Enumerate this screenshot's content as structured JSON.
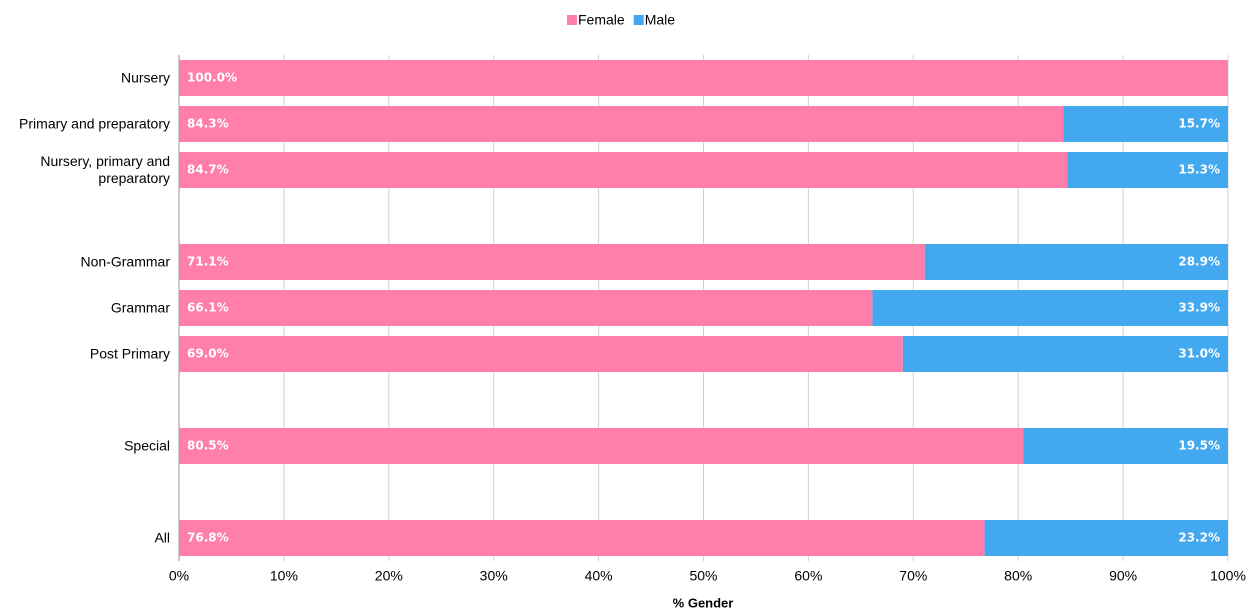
{
  "chart_data": {
    "type": "stacked-barh",
    "xlabel": "% Gender",
    "categories": [
      "Nursery",
      "Primary and preparatory",
      "Nursery, primary and preparatory",
      null,
      "Non-Grammar",
      "Grammar",
      "Post Primary",
      null,
      "Special",
      null,
      "All"
    ],
    "series": [
      {
        "name": "Female",
        "color": "#ff7faa",
        "values": [
          100.0,
          84.3,
          84.7,
          null,
          71.1,
          66.1,
          69.0,
          null,
          80.5,
          null,
          76.8
        ],
        "value_labels": [
          "100.0%",
          "84.3%",
          "84.7%",
          null,
          "71.1%",
          "66.1%",
          "69.0%",
          null,
          "80.5%",
          null,
          "76.8%"
        ]
      },
      {
        "name": "Male",
        "color": "#42a8f0",
        "values": [
          0,
          15.7,
          15.3,
          null,
          28.9,
          33.9,
          31.0,
          null,
          19.5,
          null,
          23.2
        ],
        "value_labels": [
          null,
          "15.7%",
          "15.3%",
          null,
          "28.9%",
          "33.9%",
          "31.0%",
          null,
          "19.5%",
          null,
          "23.2%"
        ]
      }
    ],
    "xlim": [
      0,
      100
    ],
    "xticks": [
      {
        "value": 0,
        "label": "0%"
      },
      {
        "value": 10,
        "label": "10%"
      },
      {
        "value": 20,
        "label": "20%"
      },
      {
        "value": 30,
        "label": "30%"
      },
      {
        "value": 40,
        "label": "40%"
      },
      {
        "value": 50,
        "label": "50%"
      },
      {
        "value": 60,
        "label": "60%"
      },
      {
        "value": 70,
        "label": "70%"
      },
      {
        "value": 80,
        "label": "80%"
      },
      {
        "value": 90,
        "label": "90%"
      },
      {
        "value": 100,
        "label": "100%"
      }
    ],
    "grid": true,
    "legend": "top"
  }
}
